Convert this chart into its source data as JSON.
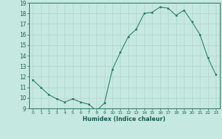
{
  "x": [
    0,
    1,
    2,
    3,
    4,
    5,
    6,
    7,
    8,
    9,
    10,
    11,
    12,
    13,
    14,
    15,
    16,
    17,
    18,
    19,
    20,
    21,
    22,
    23
  ],
  "y": [
    11.7,
    11.0,
    10.3,
    9.9,
    9.6,
    9.9,
    9.6,
    9.4,
    8.8,
    9.5,
    12.7,
    14.3,
    15.8,
    16.5,
    18.0,
    18.1,
    18.6,
    18.5,
    17.8,
    18.3,
    17.2,
    16.0,
    13.8,
    12.2
  ],
  "xlabel": "Humidex (Indice chaleur)",
  "ylim": [
    9,
    19
  ],
  "xlim": [
    -0.5,
    23.5
  ],
  "yticks": [
    9,
    10,
    11,
    12,
    13,
    14,
    15,
    16,
    17,
    18,
    19
  ],
  "xticks": [
    0,
    1,
    2,
    3,
    4,
    5,
    6,
    7,
    8,
    9,
    10,
    11,
    12,
    13,
    14,
    15,
    16,
    17,
    18,
    19,
    20,
    21,
    22,
    23
  ],
  "line_color": "#2d7a6b",
  "marker_color": "#2d7a6b",
  "bg_color": "#c5e8e0",
  "grid_color": "#afd4cc",
  "tick_color": "#1a5c50",
  "label_color": "#1a5c50"
}
